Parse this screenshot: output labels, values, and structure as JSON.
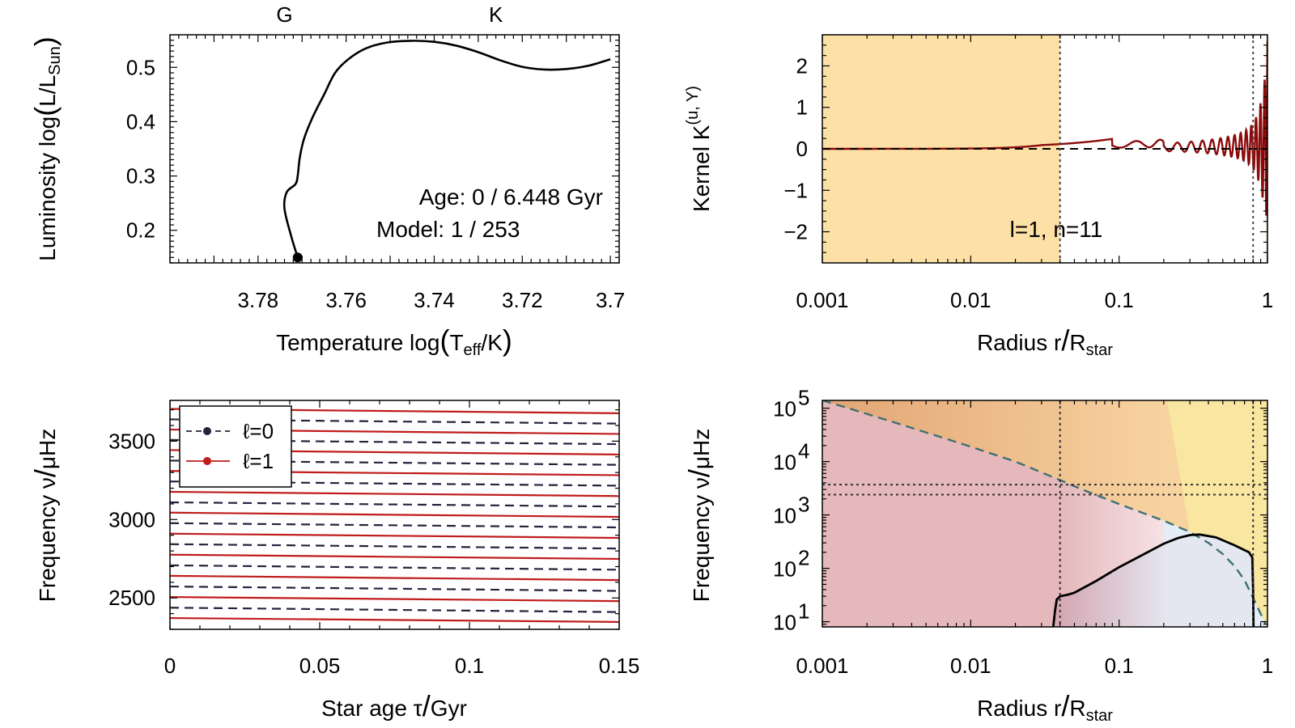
{
  "chart_data": [
    {
      "id": "hr",
      "type": "line",
      "xlabel_main": "Temperature log",
      "xlabel_sub": "eff",
      "xlabel_unit": "K",
      "ylabel_main": "Luminosity log",
      "ylabel_var": "L",
      "ylabel_sub": "Sun",
      "xlim": [
        3.8,
        3.698
      ],
      "ylim": [
        0.14,
        0.56
      ],
      "xticks": [
        "3.78",
        "3.76",
        "3.74",
        "3.72",
        "3.7"
      ],
      "xtick_values": [
        3.78,
        3.76,
        3.74,
        3.72,
        3.7
      ],
      "yticks": [
        "0.2",
        "0.3",
        "0.4",
        "0.5"
      ],
      "ytick_values": [
        0.2,
        0.3,
        0.4,
        0.5
      ],
      "spectral_labels": [
        {
          "label": "G",
          "x": 3.774
        },
        {
          "label": "K",
          "x": 3.726
        }
      ],
      "annotation_age": "Age: 0 / 6.448 Gyr",
      "annotation_model": "Model: 1 / 253",
      "track": [
        [
          3.771,
          0.15
        ],
        [
          3.7725,
          0.19
        ],
        [
          3.774,
          0.24
        ],
        [
          3.7735,
          0.27
        ],
        [
          3.7715,
          0.285
        ],
        [
          3.771,
          0.3
        ],
        [
          3.7705,
          0.335
        ],
        [
          3.7695,
          0.37
        ],
        [
          3.7675,
          0.41
        ],
        [
          3.765,
          0.45
        ],
        [
          3.7625,
          0.49
        ],
        [
          3.7595,
          0.515
        ],
        [
          3.7555,
          0.535
        ],
        [
          3.7505,
          0.546
        ],
        [
          3.745,
          0.549
        ],
        [
          3.74,
          0.547
        ],
        [
          3.735,
          0.54
        ],
        [
          3.73,
          0.528
        ],
        [
          3.725,
          0.513
        ],
        [
          3.72,
          0.501
        ],
        [
          3.715,
          0.496
        ],
        [
          3.71,
          0.497
        ],
        [
          3.705,
          0.503
        ],
        [
          3.7,
          0.515
        ]
      ],
      "current_point": [
        3.771,
        0.15
      ]
    },
    {
      "id": "kernel",
      "type": "line",
      "xscale": "log",
      "xlabel_main": "Radius r",
      "xlabel_var": "R",
      "xlabel_sub": "star",
      "ylabel_main": "Kernel K",
      "ylabel_sup": "(u, Y)",
      "xlim": [
        0.001,
        1
      ],
      "ylim": [
        -2.75,
        2.75
      ],
      "xticks": [
        "0.001",
        "0.01",
        "0.1",
        "1"
      ],
      "xtick_values": [
        0.001,
        0.01,
        0.1,
        1
      ],
      "yticks": [
        "2",
        "1",
        "0",
        "−1",
        "−2"
      ],
      "ytick_values": [
        2,
        1,
        0,
        -1,
        -2
      ],
      "annotation": "l=1, n=11",
      "regions": [
        {
          "from": 0.001,
          "to": 0.04,
          "color": "#fce0a6"
        },
        {
          "from": 0.8,
          "to": 0.98,
          "color": "#ffffff"
        },
        {
          "from": 0.98,
          "to": 1,
          "color": "#d8d2b8"
        }
      ],
      "vlines": [
        0.04,
        0.8
      ],
      "hline": 0,
      "line_color": "#8b0a0a"
    },
    {
      "id": "freq_age",
      "type": "line",
      "xlabel_main": "Star age",
      "xlabel_var": "τ",
      "xlabel_unit": "Gyr",
      "ylabel_main": "Frequency",
      "ylabel_var": "ν",
      "ylabel_unit": "μHz",
      "xlim": [
        0,
        0.15
      ],
      "ylim": [
        2300,
        3760
      ],
      "xticks": [
        "0",
        "0.05",
        "0.1",
        "0.15"
      ],
      "xtick_values": [
        0,
        0.05,
        0.1,
        0.15
      ],
      "yticks": [
        "2500",
        "3000",
        "3500"
      ],
      "ytick_values": [
        2500,
        3000,
        3500
      ],
      "legend": [
        {
          "label": "ℓ=0",
          "color": "#22253e",
          "dash": true
        },
        {
          "label": "ℓ=1",
          "color": "#c01c1c",
          "dash": false
        }
      ],
      "series": [
        {
          "name": "ℓ=0",
          "color": "#22253e",
          "start": [
            2438,
            2573,
            2708,
            2843,
            2977,
            3110,
            3243,
            3376,
            3508,
            3639
          ],
          "end": [
            2410,
            2545,
            2680,
            2815,
            2950,
            3083,
            3216,
            3349,
            3481,
            3612
          ]
        },
        {
          "name": "ℓ=1",
          "color": "#c01c1c",
          "start": [
            2372,
            2506,
            2641,
            2776,
            2910,
            3044,
            3177,
            3310,
            3443,
            3574,
            3706
          ],
          "end": [
            2347,
            2480,
            2614,
            2749,
            2883,
            3017,
            3150,
            3283,
            3415,
            3546,
            3678
          ]
        }
      ]
    },
    {
      "id": "propagation",
      "type": "area",
      "xscale": "log",
      "yscale": "log",
      "xlabel_main": "Radius r",
      "xlabel_var": "R",
      "xlabel_sub": "star",
      "ylabel_main": "Frequency",
      "ylabel_var": "ν",
      "ylabel_unit": "μHz",
      "xlim": [
        0.001,
        1
      ],
      "ylim": [
        8,
        140000
      ],
      "xticks": [
        "0.001",
        "0.01",
        "0.1",
        "1"
      ],
      "xtick_values": [
        0.001,
        0.01,
        0.1,
        1
      ],
      "yticks": [
        {
          "base": "10",
          "exp": "1",
          "v": 10
        },
        {
          "base": "10",
          "exp": "2",
          "v": 100
        },
        {
          "base": "10",
          "exp": "3",
          "v": 1000
        },
        {
          "base": "10",
          "exp": "4",
          "v": 10000
        },
        {
          "base": "10",
          "exp": "5",
          "v": 100000
        }
      ],
      "lamb_curve": [
        [
          0.001,
          140000
        ],
        [
          0.0015,
          100000
        ],
        [
          0.003,
          55000
        ],
        [
          0.006,
          30000
        ],
        [
          0.01,
          19000
        ],
        [
          0.02,
          10000
        ],
        [
          0.04,
          4500
        ],
        [
          0.06,
          2800
        ],
        [
          0.1,
          1600
        ],
        [
          0.15,
          1050
        ],
        [
          0.2,
          780
        ],
        [
          0.3,
          480
        ],
        [
          0.4,
          300
        ],
        [
          0.5,
          185
        ],
        [
          0.6,
          110
        ],
        [
          0.7,
          60
        ],
        [
          0.8,
          28
        ],
        [
          0.9,
          14
        ],
        [
          0.97,
          9
        ]
      ],
      "bv_curve": [
        [
          0.036,
          8
        ],
        [
          0.037,
          16
        ],
        [
          0.038,
          26
        ],
        [
          0.04,
          30
        ],
        [
          0.045,
          32
        ],
        [
          0.05,
          35
        ],
        [
          0.07,
          58
        ],
        [
          0.1,
          105
        ],
        [
          0.15,
          190
        ],
        [
          0.2,
          290
        ],
        [
          0.25,
          370
        ],
        [
          0.3,
          420
        ],
        [
          0.35,
          430
        ],
        [
          0.45,
          380
        ],
        [
          0.6,
          270
        ],
        [
          0.75,
          200
        ],
        [
          0.79,
          160
        ],
        [
          0.8,
          40
        ],
        [
          0.805,
          8
        ]
      ],
      "hlines": [
        3700,
        2400
      ],
      "vlines": [
        0.04,
        0.8
      ],
      "colors": {
        "bg_left": "#e5b8bb",
        "top_orange": "#e2a574",
        "right_yellow": "#f9e6a0",
        "blue": "#e3eef8",
        "lamb": "#3f6f73"
      }
    }
  ]
}
